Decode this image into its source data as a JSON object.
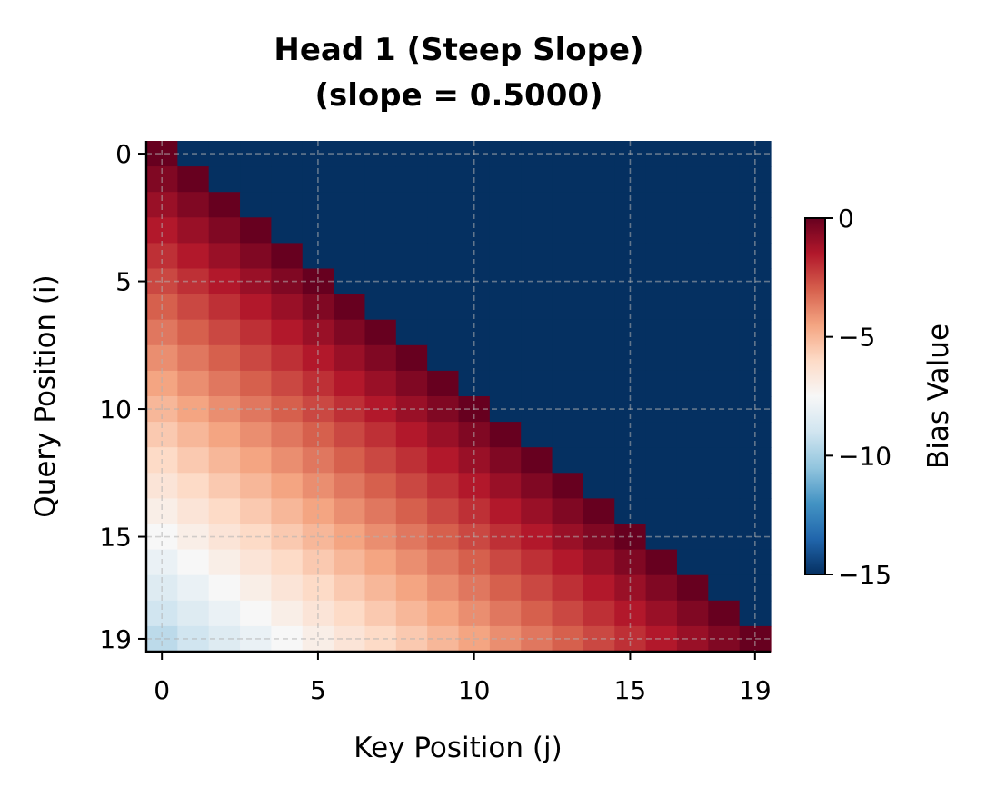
{
  "chart_data": {
    "type": "heatmap",
    "title_line1": "Head 1 (Steep Slope)",
    "title_line2": "(slope = 0.5000)",
    "slope": 0.5,
    "size": 20,
    "xlabel": "Key Position (j)",
    "ylabel": "Query Position (i)",
    "xticks": [
      0,
      5,
      10,
      15,
      19
    ],
    "yticks": [
      0,
      5,
      10,
      15,
      19
    ],
    "colorbar": {
      "label": "Bias Value",
      "min": -15,
      "max": 0,
      "ticks": [
        0,
        -5,
        -10,
        -15
      ],
      "colormap": "RdBu_r"
    },
    "masked_value": -15,
    "grid": true,
    "grid_style": "dashed"
  }
}
